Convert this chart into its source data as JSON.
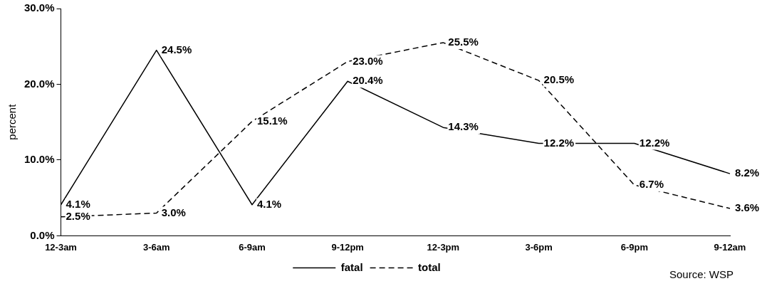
{
  "chart_data": {
    "type": "line",
    "ylabel": "percent",
    "categories": [
      "12-3am",
      "3-6am",
      "6-9am",
      "9-12pm",
      "12-3pm",
      "3-6pm",
      "6-9pm",
      "9-12am"
    ],
    "series": [
      {
        "name": "fatal",
        "color": "#000000",
        "line_style": "solid",
        "values": [
          4.1,
          24.5,
          4.1,
          20.4,
          14.3,
          12.2,
          12.2,
          8.2
        ],
        "value_labels": [
          "4.1%",
          "24.5%",
          "4.1%",
          "20.4%",
          "14.3%",
          "12.2%",
          "12.2%",
          "8.2%"
        ]
      },
      {
        "name": "total",
        "color": "#000000",
        "line_style": "dashed",
        "values": [
          2.5,
          3.0,
          15.1,
          23.0,
          25.5,
          20.5,
          6.7,
          3.6
        ],
        "value_labels": [
          "2.5%",
          "3.0%",
          "15.1%",
          "23.0%",
          "25.5%",
          "20.5%",
          "6.7%",
          "3.6%"
        ]
      }
    ],
    "ylim": [
      0,
      30
    ],
    "yticks": [
      {
        "value": 0,
        "label": "0.0%"
      },
      {
        "value": 10,
        "label": "10.0%"
      },
      {
        "value": 20,
        "label": "20.0%"
      },
      {
        "value": 30,
        "label": "30.0%"
      }
    ],
    "grid": false,
    "legend": "bottom",
    "marker": "none",
    "annotations": [
      "Source: WSP"
    ]
  }
}
